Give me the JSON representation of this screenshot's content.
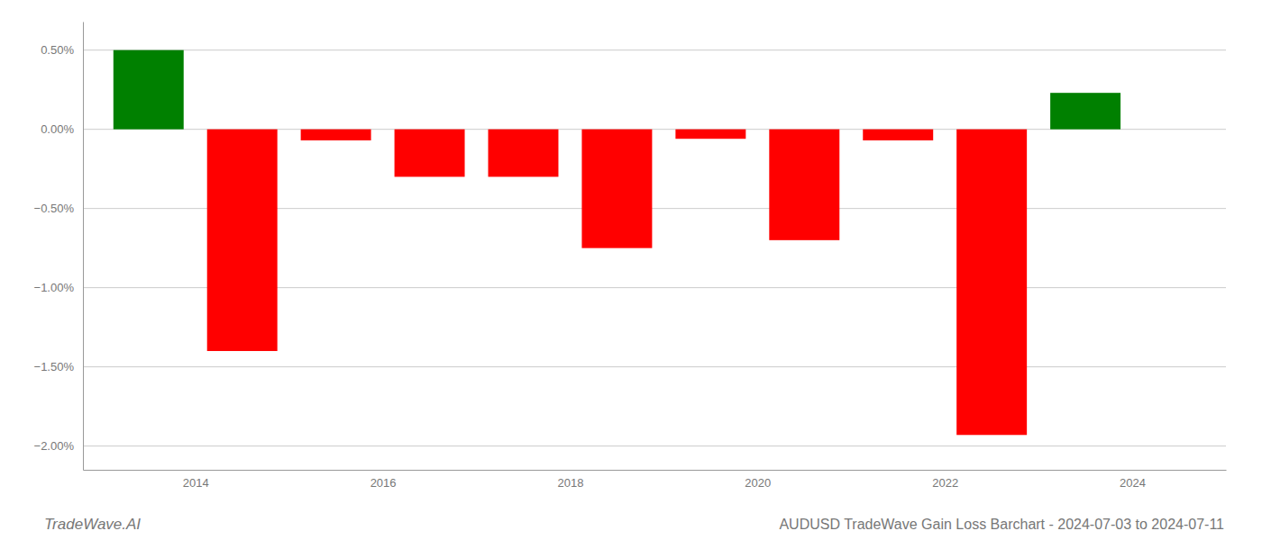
{
  "chart_data": {
    "type": "bar",
    "title": "AUDUSD TradeWave Gain Loss Barchart - 2024-07-03 to 2024-07-11",
    "annotations": [
      "TradeWave.AI"
    ],
    "x": [
      2013.5,
      2014.5,
      2015.5,
      2016.5,
      2017.5,
      2018.5,
      2019.5,
      2020.5,
      2021.5,
      2022.5,
      2023.5
    ],
    "values": [
      0.005,
      -0.014,
      -0.0007,
      -0.003,
      -0.003,
      -0.0075,
      -0.0006,
      -0.007,
      -0.0007,
      -0.0193,
      0.0023
    ],
    "colors": [
      "#008000",
      "#ff0000",
      "#ff0000",
      "#ff0000",
      "#ff0000",
      "#ff0000",
      "#ff0000",
      "#ff0000",
      "#ff0000",
      "#ff0000",
      "#008000"
    ],
    "xlim": [
      2012.8,
      2025.0
    ],
    "xticks": [
      2014,
      2016,
      2018,
      2020,
      2022,
      2024
    ],
    "ylim": [
      -0.0215,
      0.0068
    ],
    "yticks": [
      {
        "value": -0.02,
        "label": "−2.00%"
      },
      {
        "value": -0.015,
        "label": "−1.50%"
      },
      {
        "value": -0.01,
        "label": "−1.00%"
      },
      {
        "value": -0.005,
        "label": "−0.50%"
      },
      {
        "value": 0.0,
        "label": "0.00%"
      },
      {
        "value": 0.005,
        "label": "0.50%"
      }
    ],
    "grid": true
  }
}
